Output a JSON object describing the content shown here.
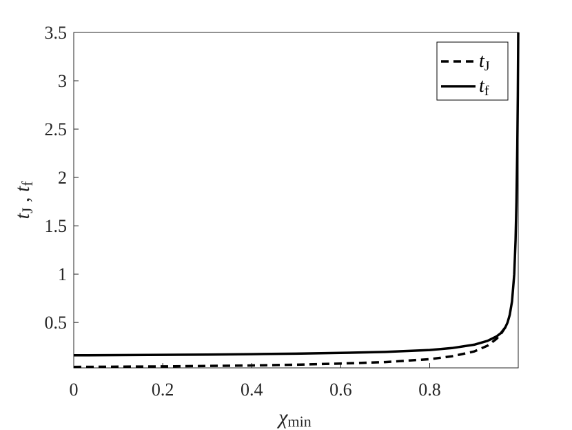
{
  "chart_data": {
    "type": "line",
    "title": "",
    "xlabel": {
      "main": "χ",
      "sub": "min"
    },
    "ylabel": {
      "t1": "t",
      "s1": "J",
      "sep": " , ",
      "t2": "t",
      "s2": "f"
    },
    "xlim": [
      0,
      0.999
    ],
    "ylim": [
      0.03,
      3.5
    ],
    "xticks": [
      0,
      0.2,
      0.4,
      0.6,
      0.8
    ],
    "xtick_labels": [
      "0",
      "0.2",
      "0.4",
      "0.6",
      "0.8"
    ],
    "yticks": [
      0.5,
      1,
      1.5,
      2,
      2.5,
      3,
      3.5
    ],
    "ytick_labels": [
      "0.5",
      "1",
      "1.5",
      "2",
      "2.5",
      "3",
      "3.5"
    ],
    "grid": false,
    "legend_position": "top-right",
    "series": [
      {
        "name": {
          "main": "t",
          "sub": "J"
        },
        "style": "dashed",
        "color": "#000000",
        "x": [
          0,
          0.1,
          0.2,
          0.3,
          0.4,
          0.5,
          0.6,
          0.7,
          0.8,
          0.85,
          0.9,
          0.93,
          0.95,
          0.96,
          0.97
        ],
        "y": [
          0.04,
          0.042,
          0.045,
          0.05,
          0.055,
          0.063,
          0.075,
          0.09,
          0.12,
          0.15,
          0.2,
          0.26,
          0.33,
          0.38,
          0.45
        ]
      },
      {
        "name": {
          "main": "t",
          "sub": "f"
        },
        "style": "solid",
        "color": "#000000",
        "x": [
          0,
          0.1,
          0.2,
          0.3,
          0.4,
          0.5,
          0.6,
          0.7,
          0.8,
          0.85,
          0.9,
          0.93,
          0.95,
          0.96,
          0.97,
          0.975,
          0.98,
          0.985,
          0.99,
          0.993,
          0.995,
          0.997,
          0.998,
          0.999
        ],
        "y": [
          0.16,
          0.162,
          0.165,
          0.168,
          0.172,
          0.177,
          0.185,
          0.195,
          0.215,
          0.235,
          0.27,
          0.31,
          0.355,
          0.39,
          0.45,
          0.5,
          0.58,
          0.72,
          1.0,
          1.35,
          1.75,
          2.35,
          2.85,
          3.5
        ]
      }
    ]
  }
}
